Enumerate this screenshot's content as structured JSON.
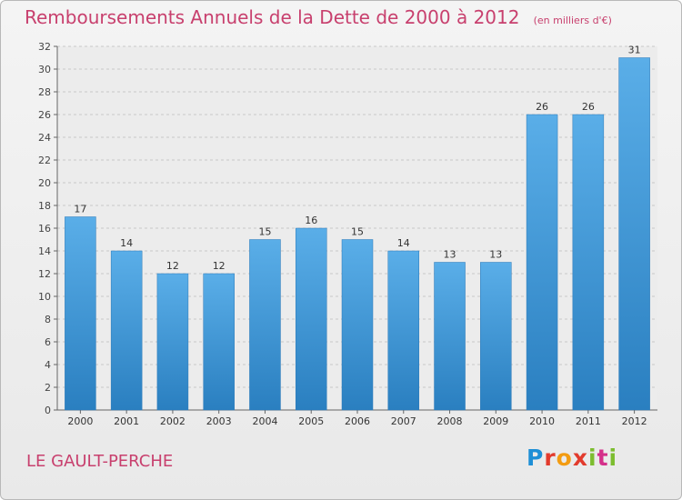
{
  "header": {
    "title": "Remboursements Annuels de la Dette de 2000 à 2012",
    "unit": "(en milliers d'€)"
  },
  "footer": {
    "commune": "LE GAULT-PERCHE",
    "logo": "Proxiti"
  },
  "colors": {
    "bar": "#3f97d8",
    "title": "#c8406e"
  },
  "chart_data": {
    "type": "bar",
    "title": "Remboursements Annuels de la Dette de 2000 à 2012",
    "subtitle": "(en milliers d'€)",
    "xlabel": "",
    "ylabel": "",
    "categories": [
      "2000",
      "2001",
      "2002",
      "2003",
      "2004",
      "2005",
      "2006",
      "2007",
      "2008",
      "2009",
      "2010",
      "2011",
      "2012"
    ],
    "values": [
      17,
      14,
      12,
      12,
      15,
      16,
      15,
      14,
      13,
      13,
      26,
      26,
      31
    ],
    "ylim": [
      0,
      32
    ],
    "yticks": [
      0,
      2,
      4,
      6,
      8,
      10,
      12,
      14,
      16,
      18,
      20,
      22,
      24,
      26,
      28,
      30,
      32
    ],
    "grid": true,
    "data_labels": true
  }
}
